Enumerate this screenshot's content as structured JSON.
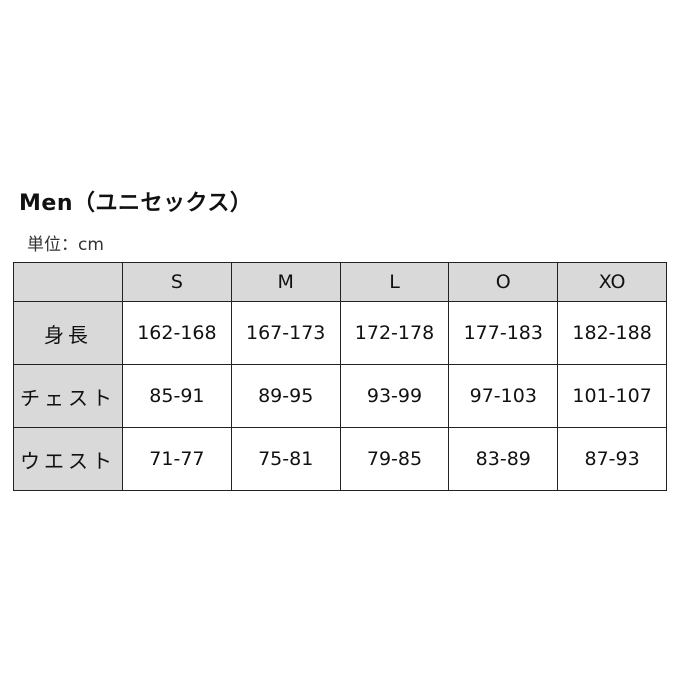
{
  "title": "Men（ユニセックス）",
  "unit": "単位：cm",
  "table": {
    "headers": [
      "",
      "S",
      "M",
      "L",
      "O",
      "XO"
    ],
    "rows": [
      {
        "label": "身長",
        "values": [
          "162-168",
          "167-173",
          "172-178",
          "177-183",
          "182-188"
        ]
      },
      {
        "label": "チェスト",
        "values": [
          "85-91",
          "89-95",
          "93-99",
          "97-103",
          "101-107"
        ]
      },
      {
        "label": "ウエスト",
        "values": [
          "71-77",
          "75-81",
          "79-85",
          "83-89",
          "87-93"
        ]
      }
    ]
  },
  "colors": {
    "header_bg": "#d9d9d9",
    "border": "#222222"
  }
}
